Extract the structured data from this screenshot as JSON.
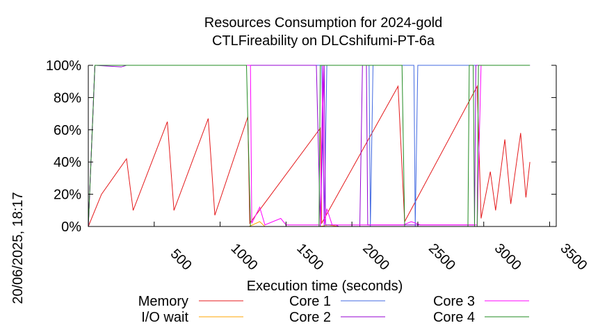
{
  "chart_data": {
    "type": "line",
    "title": [
      "Resources Consumption for 2024-gold",
      "CTLFireability on DLCshifumi-PT-6a"
    ],
    "xlabel": "Execution time (seconds)",
    "ylabel": "",
    "side_label": "20/06/2025, 18:17",
    "xlim": [
      0,
      3550
    ],
    "ylim": [
      0,
      100
    ],
    "x_ticks": [
      500,
      1000,
      1500,
      2000,
      2500,
      3000,
      3500
    ],
    "y_ticks": [
      0,
      20,
      40,
      60,
      80,
      100
    ],
    "y_tick_labels": [
      "0%",
      "20%",
      "40%",
      "60%",
      "80%",
      "100%"
    ],
    "legend_position": "bottom",
    "series": [
      {
        "name": "Memory",
        "color": "#e41a1c",
        "points": [
          [
            0,
            0
          ],
          [
            100,
            20
          ],
          [
            290,
            42
          ],
          [
            340,
            10
          ],
          [
            600,
            65
          ],
          [
            650,
            10
          ],
          [
            910,
            67
          ],
          [
            960,
            7
          ],
          [
            1210,
            68
          ],
          [
            1225,
            2
          ],
          [
            1760,
            61
          ],
          [
            1770,
            2
          ],
          [
            2350,
            87
          ],
          [
            2400,
            3
          ],
          [
            2950,
            87
          ],
          [
            2980,
            5
          ],
          [
            3050,
            34
          ],
          [
            3090,
            10
          ],
          [
            3160,
            54
          ],
          [
            3205,
            14
          ],
          [
            3280,
            58
          ],
          [
            3320,
            18
          ],
          [
            3350,
            40
          ]
        ]
      },
      {
        "name": "I/O wait",
        "color": "#ffa500",
        "points": [
          [
            0,
            0
          ],
          [
            1220,
            0
          ],
          [
            1300,
            3
          ],
          [
            1340,
            0
          ],
          [
            1760,
            0
          ],
          [
            1820,
            1
          ],
          [
            1900,
            0
          ],
          [
            3000,
            0
          ]
        ]
      },
      {
        "name": "Core 1",
        "color": "#4169e1",
        "points": [
          [
            0,
            0
          ],
          [
            50,
            100
          ],
          [
            1770,
            100
          ],
          [
            1790,
            0
          ],
          [
            1810,
            100
          ],
          [
            2130,
            100
          ],
          [
            2140,
            0
          ],
          [
            2160,
            100
          ],
          [
            2470,
            100
          ],
          [
            2480,
            0
          ],
          [
            2500,
            100
          ],
          [
            2990,
            100
          ],
          [
            3350,
            100
          ]
        ]
      },
      {
        "name": "Core 2",
        "color": "#9400d3",
        "points": [
          [
            0,
            0
          ],
          [
            50,
            100
          ],
          [
            250,
            99
          ],
          [
            290,
            100
          ],
          [
            1730,
            100
          ],
          [
            1760,
            0
          ],
          [
            1790,
            100
          ],
          [
            1800,
            1
          ],
          [
            1880,
            1
          ],
          [
            1900,
            0
          ],
          [
            2060,
            0
          ],
          [
            2080,
            100
          ],
          [
            2110,
            100
          ],
          [
            2120,
            1
          ],
          [
            2930,
            1
          ],
          [
            2940,
            100
          ],
          [
            3350,
            100
          ]
        ]
      },
      {
        "name": "Core 3",
        "color": "#ff00ff",
        "points": [
          [
            0,
            0
          ],
          [
            50,
            100
          ],
          [
            1230,
            100
          ],
          [
            1240,
            2
          ],
          [
            1300,
            12
          ],
          [
            1340,
            1
          ],
          [
            1460,
            5
          ],
          [
            1500,
            1
          ],
          [
            1760,
            1
          ],
          [
            1780,
            100
          ],
          [
            1790,
            1
          ],
          [
            1810,
            11
          ],
          [
            1850,
            1
          ],
          [
            2390,
            1
          ],
          [
            2450,
            3
          ],
          [
            2520,
            1
          ],
          [
            2850,
            1
          ],
          [
            2950,
            1
          ],
          [
            2980,
            100
          ],
          [
            3350,
            100
          ]
        ]
      },
      {
        "name": "Core 4",
        "color": "#228b22",
        "points": [
          [
            0,
            0
          ],
          [
            50,
            100
          ],
          [
            1200,
            100
          ],
          [
            1230,
            0
          ],
          [
            1750,
            0
          ],
          [
            1760,
            100
          ],
          [
            2380,
            100
          ],
          [
            2400,
            0
          ],
          [
            2880,
            0
          ],
          [
            2890,
            100
          ],
          [
            2920,
            100
          ],
          [
            2930,
            0
          ],
          [
            2950,
            0
          ],
          [
            2960,
            100
          ],
          [
            3350,
            100
          ]
        ]
      }
    ]
  }
}
